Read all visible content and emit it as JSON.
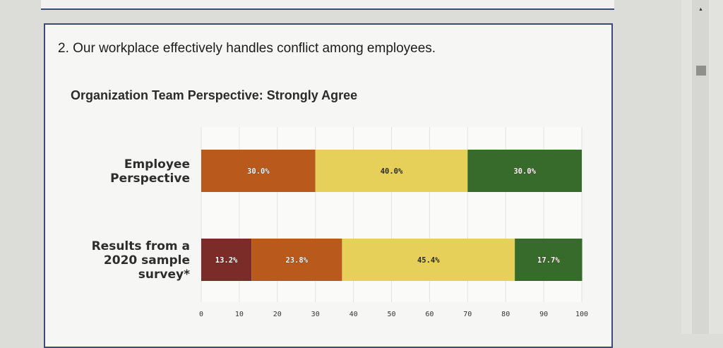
{
  "question": "2. Our workplace effectively handles conflict among employees.",
  "subtitle": "Organization Team Perspective: Strongly Agree",
  "chart_data": {
    "type": "bar",
    "orientation": "horizontal-stacked",
    "categories": [
      [
        "Employee",
        "Perspective"
      ],
      [
        "Results from a",
        "2020 sample",
        "survey*"
      ]
    ],
    "rows": [
      {
        "segments": [
          {
            "value": 30.0,
            "label": "30.0%",
            "color": "#b95a1c",
            "text_color": "#ffffff",
            "outlined": true
          },
          {
            "value": 40.0,
            "label": "40.0%",
            "color": "#e6d05a",
            "text_color": "#2a2a2a",
            "outlined": false
          },
          {
            "value": 30.0,
            "label": "30.0%",
            "color": "#376b2c",
            "text_color": "#ffffff",
            "outlined": true
          }
        ]
      },
      {
        "segments": [
          {
            "value": 13.2,
            "label": "13.2%",
            "color": "#7b2b28",
            "text_color": "#ffffff",
            "outlined": true
          },
          {
            "value": 23.8,
            "label": "23.8%",
            "color": "#b95a1c",
            "text_color": "#ffffff",
            "outlined": true
          },
          {
            "value": 45.4,
            "label": "45.4%",
            "color": "#e6d05a",
            "text_color": "#2a2a2a",
            "outlined": false
          },
          {
            "value": 17.7,
            "label": "17.7%",
            "color": "#376b2c",
            "text_color": "#ffffff",
            "outlined": true
          }
        ]
      }
    ],
    "xlim": [
      0,
      100
    ],
    "xticks": [
      0,
      10,
      20,
      30,
      40,
      50,
      60,
      70,
      80,
      90,
      100
    ],
    "grid": true
  }
}
